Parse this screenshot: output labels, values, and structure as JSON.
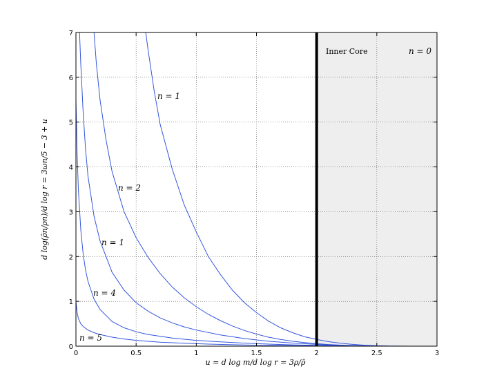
{
  "chart_data": {
    "type": "line",
    "xlabel": "u = d log m/d log r = 3ρ/ρ̄",
    "ylabel": "d log(ρ̄n/ρn)/d log r = 3ωn/5 − 3 + u",
    "xlim": [
      0,
      3
    ],
    "ylim": [
      0,
      7
    ],
    "xticks": [
      "0",
      "0.5",
      "1",
      "1.5",
      "2",
      "2.5",
      "3"
    ],
    "yticks": [
      "0",
      "1",
      "2",
      "3",
      "4",
      "5",
      "6",
      "7"
    ],
    "grid": true,
    "line_color": "#3355dd",
    "core_boundary_x": 2,
    "core_region": {
      "x_start": 2,
      "x_end": 3,
      "fill": "#eeeeee"
    },
    "annotations": {
      "inner_core": "Inner Core",
      "n_zero": "n = 0",
      "label_n1_top": "n = 1",
      "label_n2": "n = 2",
      "label_n1_mid": "n = 1",
      "label_n4": "n = 4",
      "label_n5": "n = 5"
    },
    "series": [
      {
        "x": [
          0.58,
          0.6,
          0.65,
          0.7,
          0.8,
          0.9,
          1.0,
          1.1,
          1.2,
          1.3,
          1.4,
          1.5,
          1.6,
          1.7,
          1.8,
          1.9,
          2.0,
          2.1,
          2.2,
          2.3,
          2.4,
          2.5,
          2.6,
          2.7,
          2.8
        ],
        "y": [
          7.0,
          6.6,
          5.7,
          4.95,
          3.95,
          3.15,
          2.55,
          2.0,
          1.6,
          1.25,
          0.97,
          0.75,
          0.56,
          0.41,
          0.3,
          0.21,
          0.15,
          0.1,
          0.065,
          0.04,
          0.022,
          0.01,
          0.004,
          0.001,
          0.0
        ]
      },
      {
        "x": [
          0.15,
          0.17,
          0.2,
          0.25,
          0.3,
          0.4,
          0.5,
          0.6,
          0.7,
          0.8,
          0.9,
          1.0,
          1.1,
          1.2,
          1.3,
          1.4,
          1.5,
          1.6,
          1.7,
          1.8,
          1.9,
          2.0,
          2.1,
          2.2,
          2.3,
          2.4,
          2.5,
          2.6,
          2.7
        ],
        "y": [
          7.0,
          6.3,
          5.5,
          4.6,
          3.9,
          3.0,
          2.42,
          1.98,
          1.62,
          1.32,
          1.08,
          0.88,
          0.71,
          0.57,
          0.45,
          0.35,
          0.27,
          0.2,
          0.15,
          0.11,
          0.08,
          0.055,
          0.037,
          0.023,
          0.013,
          0.006,
          0.002,
          0.0005,
          0.0
        ]
      },
      {
        "x": [
          0.03,
          0.04,
          0.06,
          0.08,
          0.1,
          0.15,
          0.2,
          0.3,
          0.4,
          0.5,
          0.6,
          0.7,
          0.8,
          0.9,
          1.0,
          1.2,
          1.4,
          1.6,
          1.8,
          2.0,
          2.2,
          2.4,
          2.6
        ],
        "y": [
          7.0,
          6.3,
          5.2,
          4.4,
          3.8,
          2.9,
          2.35,
          1.65,
          1.25,
          0.97,
          0.78,
          0.63,
          0.52,
          0.43,
          0.36,
          0.25,
          0.17,
          0.11,
          0.07,
          0.04,
          0.02,
          0.007,
          0.0
        ]
      },
      {
        "x": [
          0.0,
          0.01,
          0.02,
          0.04,
          0.06,
          0.08,
          0.1,
          0.15,
          0.2,
          0.3,
          0.4,
          0.5,
          0.6,
          0.8,
          1.0,
          1.2,
          1.4,
          1.6,
          1.8,
          2.0,
          2.2,
          2.4
        ],
        "y": [
          5.5,
          4.3,
          3.5,
          2.6,
          2.05,
          1.7,
          1.45,
          1.05,
          0.82,
          0.55,
          0.41,
          0.32,
          0.26,
          0.18,
          0.13,
          0.095,
          0.068,
          0.047,
          0.03,
          0.018,
          0.008,
          0.0
        ]
      },
      {
        "x": [
          0.0,
          0.01,
          0.02,
          0.04,
          0.06,
          0.1,
          0.15,
          0.2,
          0.3,
          0.4,
          0.5,
          0.7,
          0.9,
          1.1,
          1.3,
          1.5,
          1.7,
          1.9,
          2.1,
          2.3
        ],
        "y": [
          1.0,
          0.75,
          0.62,
          0.5,
          0.44,
          0.36,
          0.3,
          0.26,
          0.2,
          0.16,
          0.13,
          0.09,
          0.065,
          0.047,
          0.033,
          0.022,
          0.014,
          0.008,
          0.003,
          0.0
        ]
      }
    ]
  }
}
